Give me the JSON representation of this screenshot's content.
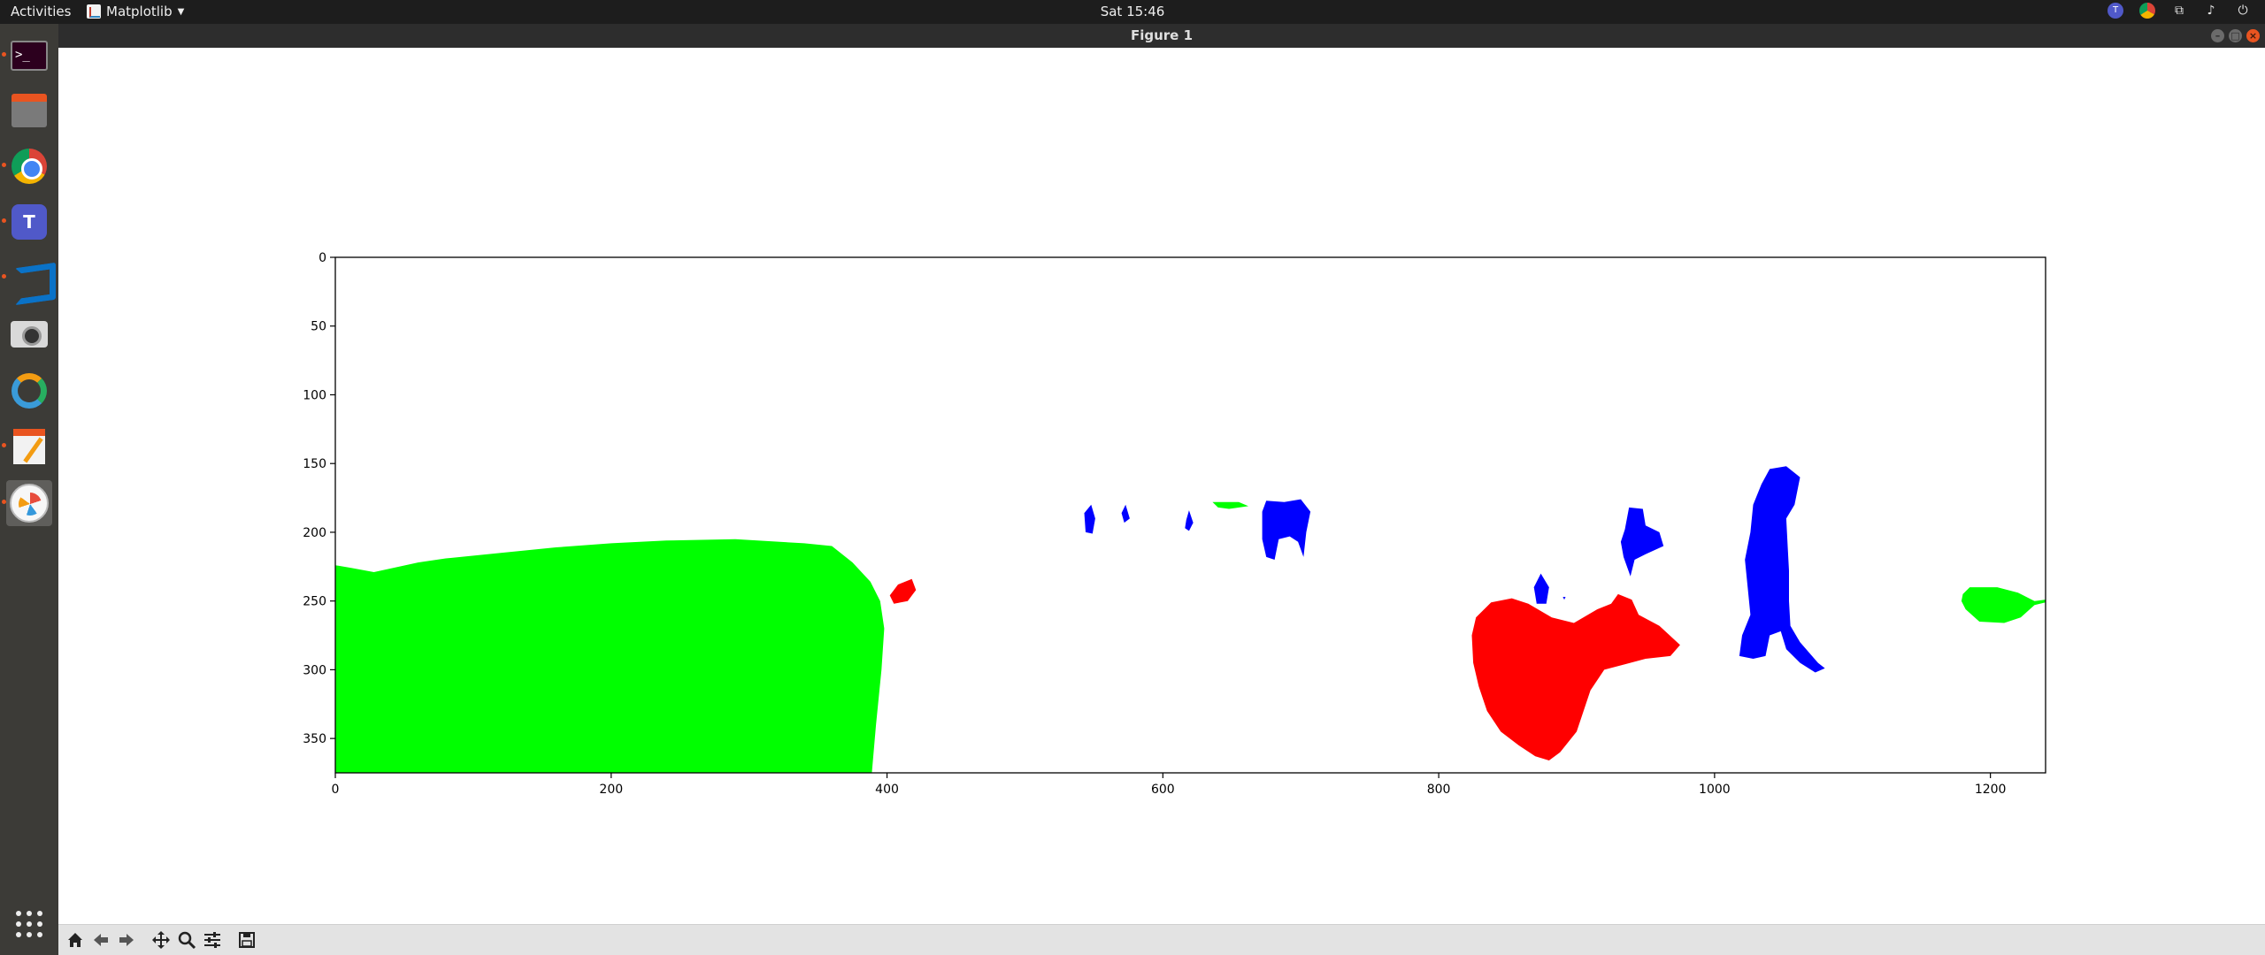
{
  "topbar": {
    "activities": "Activities",
    "app_name": "Matplotlib",
    "clock": "Sat 15:46",
    "tray_icons": [
      "teams-icon",
      "chrome-icon",
      "network-icon",
      "volume-icon",
      "power-icon"
    ]
  },
  "dock": {
    "items": [
      {
        "name": "terminal-icon",
        "active": false
      },
      {
        "name": "files-icon",
        "active": false
      },
      {
        "name": "chrome-icon",
        "active": false
      },
      {
        "name": "teams-icon",
        "active": false
      },
      {
        "name": "vscode-icon",
        "active": false
      },
      {
        "name": "camera-icon",
        "active": false
      },
      {
        "name": "ring-app-icon",
        "active": false
      },
      {
        "name": "text-editor-icon",
        "active": false
      },
      {
        "name": "matplotlib-icon",
        "active": true
      }
    ],
    "show_apps_icon": "apps-grid-icon"
  },
  "window": {
    "title": "Figure 1"
  },
  "toolbar": {
    "buttons": [
      "home-icon",
      "back-icon",
      "forward-icon",
      "pan-icon",
      "zoom-icon",
      "configure-icon",
      "save-icon"
    ]
  },
  "chart_data": {
    "type": "image",
    "description_free": true,
    "xlim": [
      0,
      1240
    ],
    "ylim": [
      375,
      0
    ],
    "x_ticks": [
      0,
      200,
      400,
      600,
      800,
      1000,
      1200
    ],
    "y_ticks": [
      0,
      50,
      100,
      150,
      200,
      250,
      300,
      350
    ],
    "colors": {
      "green": "#00ff00",
      "red": "#ff0000",
      "blue": "#0000ff"
    },
    "regions": [
      {
        "color": "green",
        "points": [
          [
            0,
            224
          ],
          [
            12,
            226
          ],
          [
            28,
            229
          ],
          [
            60,
            222
          ],
          [
            80,
            219
          ],
          [
            120,
            215
          ],
          [
            160,
            211
          ],
          [
            200,
            208
          ],
          [
            240,
            206
          ],
          [
            290,
            205
          ],
          [
            340,
            208
          ],
          [
            360,
            210
          ],
          [
            375,
            222
          ],
          [
            388,
            236
          ],
          [
            395,
            250
          ],
          [
            398,
            270
          ],
          [
            396,
            300
          ],
          [
            392,
            340
          ],
          [
            389,
            375
          ],
          [
            0,
            375
          ]
        ]
      },
      {
        "color": "red",
        "points": [
          [
            402,
            246
          ],
          [
            408,
            238
          ],
          [
            418,
            234
          ],
          [
            421,
            242
          ],
          [
            415,
            250
          ],
          [
            405,
            252
          ]
        ]
      },
      {
        "color": "blue",
        "points": [
          [
            543,
            186
          ],
          [
            548,
            180
          ],
          [
            551,
            190
          ],
          [
            549,
            201
          ],
          [
            544,
            200
          ]
        ]
      },
      {
        "color": "blue",
        "points": [
          [
            570,
            186
          ],
          [
            573,
            180
          ],
          [
            576,
            190
          ],
          [
            572,
            193
          ]
        ]
      },
      {
        "color": "blue",
        "points": [
          [
            617,
            191
          ],
          [
            619,
            184
          ],
          [
            622,
            193
          ],
          [
            619,
            199
          ],
          [
            616,
            197
          ]
        ]
      },
      {
        "color": "green",
        "points": [
          [
            636,
            178
          ],
          [
            655,
            178
          ],
          [
            662,
            181
          ],
          [
            648,
            183
          ],
          [
            640,
            182
          ]
        ]
      },
      {
        "color": "blue",
        "points": [
          [
            672,
            185
          ],
          [
            675,
            177
          ],
          [
            688,
            178
          ],
          [
            700,
            176
          ],
          [
            707,
            185
          ],
          [
            704,
            200
          ],
          [
            702,
            218
          ],
          [
            698,
            207
          ],
          [
            692,
            203
          ],
          [
            684,
            205
          ],
          [
            681,
            220
          ],
          [
            675,
            218
          ],
          [
            672,
            205
          ]
        ]
      },
      {
        "color": "blue",
        "points": [
          [
            869,
            240
          ],
          [
            874,
            230
          ],
          [
            880,
            240
          ],
          [
            878,
            252
          ],
          [
            871,
            252
          ]
        ]
      },
      {
        "color": "blue",
        "points": [
          [
            890,
            247
          ],
          [
            892,
            247
          ],
          [
            891,
            249
          ]
        ]
      },
      {
        "color": "blue",
        "points": [
          [
            935,
            198
          ],
          [
            938,
            182
          ],
          [
            948,
            183
          ],
          [
            950,
            195
          ],
          [
            960,
            200
          ],
          [
            963,
            210
          ],
          [
            950,
            216
          ],
          [
            942,
            220
          ],
          [
            939,
            232
          ],
          [
            934,
            218
          ],
          [
            932,
            207
          ]
        ]
      },
      {
        "color": "red",
        "points": [
          [
            827,
            262
          ],
          [
            838,
            251
          ],
          [
            853,
            248
          ],
          [
            865,
            252
          ],
          [
            882,
            262
          ],
          [
            898,
            266
          ],
          [
            915,
            256
          ],
          [
            925,
            252
          ],
          [
            930,
            245
          ],
          [
            940,
            249
          ],
          [
            945,
            260
          ],
          [
            960,
            268
          ],
          [
            975,
            282
          ],
          [
            968,
            290
          ],
          [
            950,
            292
          ],
          [
            935,
            296
          ],
          [
            920,
            300
          ],
          [
            910,
            315
          ],
          [
            900,
            345
          ],
          [
            888,
            360
          ],
          [
            880,
            366
          ],
          [
            870,
            363
          ],
          [
            858,
            355
          ],
          [
            845,
            345
          ],
          [
            835,
            330
          ],
          [
            829,
            312
          ],
          [
            825,
            295
          ],
          [
            824,
            275
          ]
        ]
      },
      {
        "color": "blue",
        "points": [
          [
            1034,
            165
          ],
          [
            1040,
            154
          ],
          [
            1052,
            152
          ],
          [
            1062,
            160
          ],
          [
            1058,
            180
          ],
          [
            1052,
            190
          ],
          [
            1053,
            210
          ],
          [
            1054,
            228
          ],
          [
            1054,
            250
          ],
          [
            1055,
            268
          ],
          [
            1062,
            280
          ],
          [
            1075,
            295
          ],
          [
            1080,
            299
          ],
          [
            1073,
            302
          ],
          [
            1062,
            295
          ],
          [
            1052,
            285
          ],
          [
            1048,
            272
          ],
          [
            1040,
            275
          ],
          [
            1037,
            290
          ],
          [
            1028,
            292
          ],
          [
            1018,
            290
          ],
          [
            1020,
            275
          ],
          [
            1026,
            260
          ],
          [
            1024,
            240
          ],
          [
            1022,
            220
          ],
          [
            1026,
            200
          ],
          [
            1028,
            180
          ]
        ]
      },
      {
        "color": "green",
        "points": [
          [
            1180,
            245
          ],
          [
            1185,
            240
          ],
          [
            1205,
            240
          ],
          [
            1220,
            244
          ],
          [
            1232,
            250
          ],
          [
            1240,
            249
          ],
          [
            1240,
            251
          ],
          [
            1232,
            253
          ],
          [
            1222,
            262
          ],
          [
            1210,
            266
          ],
          [
            1192,
            265
          ],
          [
            1182,
            256
          ],
          [
            1179,
            250
          ]
        ]
      }
    ]
  }
}
